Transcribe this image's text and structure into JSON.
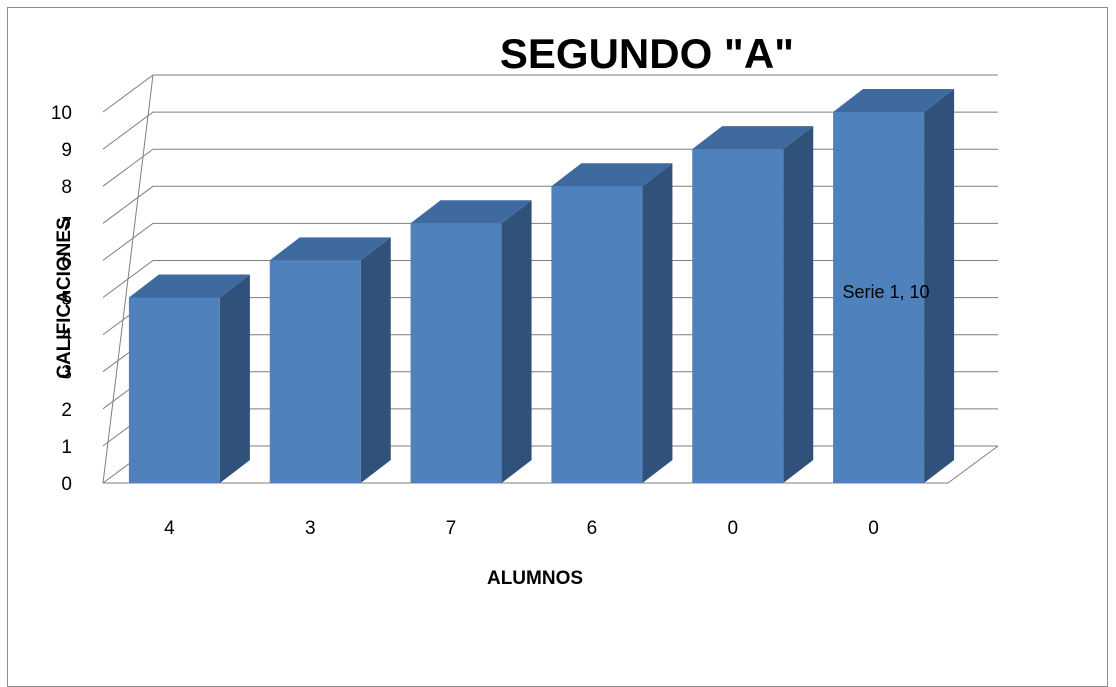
{
  "chart_data": {
    "type": "bar",
    "title": "SEGUNDO \"A\"",
    "xlabel": "ALUMNOS",
    "ylabel": "CALIFICACIONES",
    "categories": [
      "4",
      "3",
      "7",
      "6",
      "0",
      "0"
    ],
    "series": [
      {
        "values": [
          5,
          6,
          7,
          8,
          9,
          10
        ]
      }
    ],
    "ylim": [
      0,
      10
    ],
    "yticks": [
      "0",
      "1",
      "2",
      "3",
      "4",
      "5",
      "6",
      "7",
      "8",
      "9",
      "10"
    ],
    "grid": true,
    "style": "3d-column",
    "data_label": {
      "text": "Serie 1, 10"
    },
    "colors": {
      "bar_front": "#4f81bd",
      "bar_top": "#3e6aa0",
      "bar_side": "#30517a",
      "grid": "#7f7f7f"
    }
  }
}
